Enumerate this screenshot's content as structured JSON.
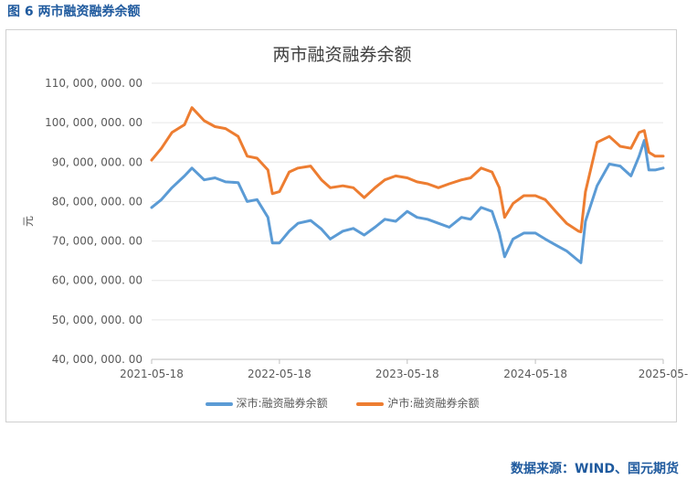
{
  "figure_caption": "图 6 两市融资融券余额",
  "source_note": "数据来源：WIND、国元期货",
  "colors": {
    "shenzhen": "#5b9bd5",
    "shanghai": "#ed7d31",
    "caption": "#1f5a9e",
    "grid": "#e6e6e6",
    "axis": "#bfbfbf"
  },
  "chart_data": {
    "type": "line",
    "title": "两市融资融券余额",
    "ylabel": "元",
    "xlabel": "",
    "ylim": [
      40000000,
      110000000
    ],
    "yticks": [
      40000000,
      50000000,
      60000000,
      70000000,
      80000000,
      90000000,
      100000000,
      110000000
    ],
    "ytick_labels": [
      "40, 000, 000. 00",
      "50, 000, 000. 00",
      "60, 000, 000. 00",
      "70, 000, 000. 00",
      "80, 000, 000. 00",
      "90, 000, 000. 00",
      "100, 000, 000. 00",
      "110, 000, 000. 00"
    ],
    "xticks": [
      "2021-05-18",
      "2022-05-18",
      "2023-05-18",
      "2024-05-18",
      "2025-05-"
    ],
    "xlim": [
      "2021-05-18",
      "2025-05-18"
    ],
    "grid": true,
    "legend_position": "bottom",
    "series": [
      {
        "name": "深市:融资融券余额",
        "color": "#5b9bd5",
        "x": [
          "2021-05-18",
          "2021-06-15",
          "2021-07-15",
          "2021-08-20",
          "2021-09-10",
          "2021-10-15",
          "2021-11-15",
          "2021-12-15",
          "2022-01-20",
          "2022-02-15",
          "2022-03-15",
          "2022-04-15",
          "2022-04-28",
          "2022-05-18",
          "2022-06-15",
          "2022-07-10",
          "2022-08-15",
          "2022-09-15",
          "2022-10-10",
          "2022-11-15",
          "2022-12-15",
          "2023-01-15",
          "2023-02-15",
          "2023-03-15",
          "2023-04-15",
          "2023-05-18",
          "2023-06-15",
          "2023-07-15",
          "2023-08-15",
          "2023-09-15",
          "2023-10-20",
          "2023-11-15",
          "2023-12-15",
          "2024-01-15",
          "2024-02-05",
          "2024-02-20",
          "2024-03-15",
          "2024-04-15",
          "2024-05-18",
          "2024-06-15",
          "2024-07-15",
          "2024-08-15",
          "2024-09-18",
          "2024-09-25",
          "2024-10-08",
          "2024-11-10",
          "2024-12-15",
          "2025-01-15",
          "2025-02-15",
          "2025-03-10",
          "2025-03-25",
          "2025-04-07",
          "2025-04-25",
          "2025-05-18"
        ],
        "values": [
          78500000,
          80500000,
          83500000,
          86500000,
          88500000,
          85500000,
          86000000,
          85000000,
          84800000,
          80000000,
          80500000,
          76000000,
          69500000,
          69500000,
          72500000,
          74500000,
          75200000,
          73000000,
          70500000,
          72500000,
          73200000,
          71500000,
          73500000,
          75500000,
          75000000,
          77500000,
          76000000,
          75500000,
          74500000,
          73500000,
          76000000,
          75500000,
          78500000,
          77500000,
          72000000,
          66000000,
          70500000,
          72000000,
          72000000,
          70500000,
          69000000,
          67500000,
          65000000,
          64500000,
          75000000,
          84000000,
          89500000,
          89000000,
          86500000,
          91500000,
          95500000,
          88000000,
          88000000,
          88500000
        ]
      },
      {
        "name": "沪市:融资融券余额",
        "color": "#ed7d31",
        "x": [
          "2021-05-18",
          "2021-06-15",
          "2021-07-15",
          "2021-08-20",
          "2021-09-10",
          "2021-10-15",
          "2021-11-15",
          "2021-12-15",
          "2022-01-20",
          "2022-02-15",
          "2022-03-15",
          "2022-04-15",
          "2022-04-28",
          "2022-05-18",
          "2022-06-15",
          "2022-07-10",
          "2022-08-15",
          "2022-09-15",
          "2022-10-10",
          "2022-11-15",
          "2022-12-15",
          "2023-01-15",
          "2023-02-15",
          "2023-03-15",
          "2023-04-15",
          "2023-05-18",
          "2023-06-15",
          "2023-07-15",
          "2023-08-15",
          "2023-09-15",
          "2023-10-20",
          "2023-11-15",
          "2023-12-15",
          "2024-01-15",
          "2024-02-05",
          "2024-02-20",
          "2024-03-15",
          "2024-04-15",
          "2024-05-18",
          "2024-06-15",
          "2024-07-15",
          "2024-08-15",
          "2024-09-18",
          "2024-09-25",
          "2024-10-08",
          "2024-11-10",
          "2024-12-15",
          "2025-01-15",
          "2025-02-15",
          "2025-03-10",
          "2025-03-25",
          "2025-04-07",
          "2025-04-25",
          "2025-05-18"
        ],
        "values": [
          90500000,
          93500000,
          97500000,
          99500000,
          103800000,
          100500000,
          99000000,
          98500000,
          96500000,
          91500000,
          91000000,
          88000000,
          82000000,
          82500000,
          87500000,
          88500000,
          89000000,
          85500000,
          83500000,
          84000000,
          83500000,
          81000000,
          83500000,
          85500000,
          86500000,
          86000000,
          85000000,
          84500000,
          83500000,
          84500000,
          85500000,
          86000000,
          88500000,
          87500000,
          83500000,
          76000000,
          79500000,
          81500000,
          81500000,
          80500000,
          77500000,
          74500000,
          72500000,
          72300000,
          82500000,
          95000000,
          96500000,
          94000000,
          93500000,
          97500000,
          98000000,
          92500000,
          91500000,
          91500000
        ]
      }
    ]
  }
}
